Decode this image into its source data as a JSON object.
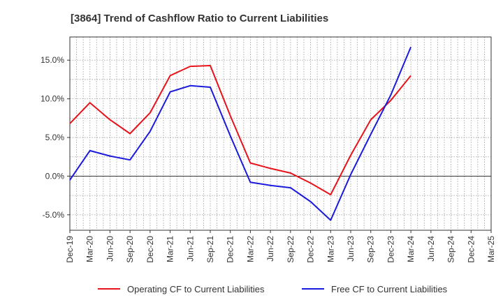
{
  "chart_data": {
    "type": "line",
    "title": "[3864]  Trend of Cashflow Ratio to Current Liabilities",
    "xlabel": "",
    "ylabel": "",
    "x": [
      "Dec-19",
      "Mar-20",
      "Jun-20",
      "Sep-20",
      "Dec-20",
      "Mar-21",
      "Jun-21",
      "Sep-21",
      "Dec-21",
      "Mar-22",
      "Jun-22",
      "Sep-22",
      "Dec-22",
      "Mar-23",
      "Jun-23",
      "Sep-23",
      "Dec-23",
      "Mar-24",
      "Jun-24",
      "Sep-24",
      "Dec-24",
      "Mar-25"
    ],
    "ylim": [
      -7.0,
      18.0
    ],
    "yticks": [
      -5.0,
      0.0,
      5.0,
      10.0,
      15.0
    ],
    "ytick_labels": [
      "-5.0%",
      "0.0%",
      "5.0%",
      "10.0%",
      "15.0%"
    ],
    "grid": true,
    "legend_position": "bottom",
    "series": [
      {
        "name": "Operating CF to Current Liabilities",
        "color": "#e8121a",
        "values": [
          6.8,
          9.5,
          7.3,
          5.5,
          8.2,
          13.0,
          14.2,
          14.3,
          7.8,
          1.7,
          1.0,
          0.4,
          -0.9,
          -2.4,
          2.7,
          7.3,
          9.8,
          13.0,
          null,
          null,
          null,
          null
        ]
      },
      {
        "name": "Free CF to Current Liabilities",
        "color": "#1a1adc",
        "values": [
          -0.5,
          3.3,
          2.6,
          2.1,
          5.8,
          10.9,
          11.7,
          11.5,
          5.2,
          -0.8,
          -1.2,
          -1.5,
          -3.3,
          -5.7,
          0.2,
          5.4,
          10.5,
          16.7,
          null,
          null,
          null,
          null
        ]
      }
    ]
  }
}
